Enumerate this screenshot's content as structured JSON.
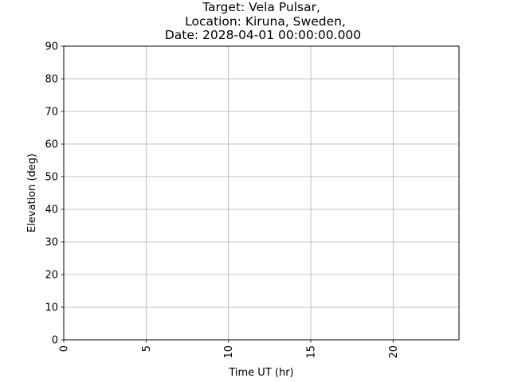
{
  "chart_data": {
    "type": "line",
    "title_lines": [
      "Target: Vela Pulsar,",
      "Location: Kiruna, Sweden,",
      "Date: 2028-04-01 00:00:00.000"
    ],
    "xlabel": "Time UT (hr)",
    "ylabel": "Elevation (deg)",
    "xlim": [
      0,
      24
    ],
    "ylim": [
      0,
      90
    ],
    "xticks": [
      0,
      5,
      10,
      15,
      20
    ],
    "yticks": [
      0,
      10,
      20,
      30,
      40,
      50,
      60,
      70,
      80,
      90
    ],
    "grid": true,
    "series": [],
    "x_tick_rotation": "vertical"
  }
}
